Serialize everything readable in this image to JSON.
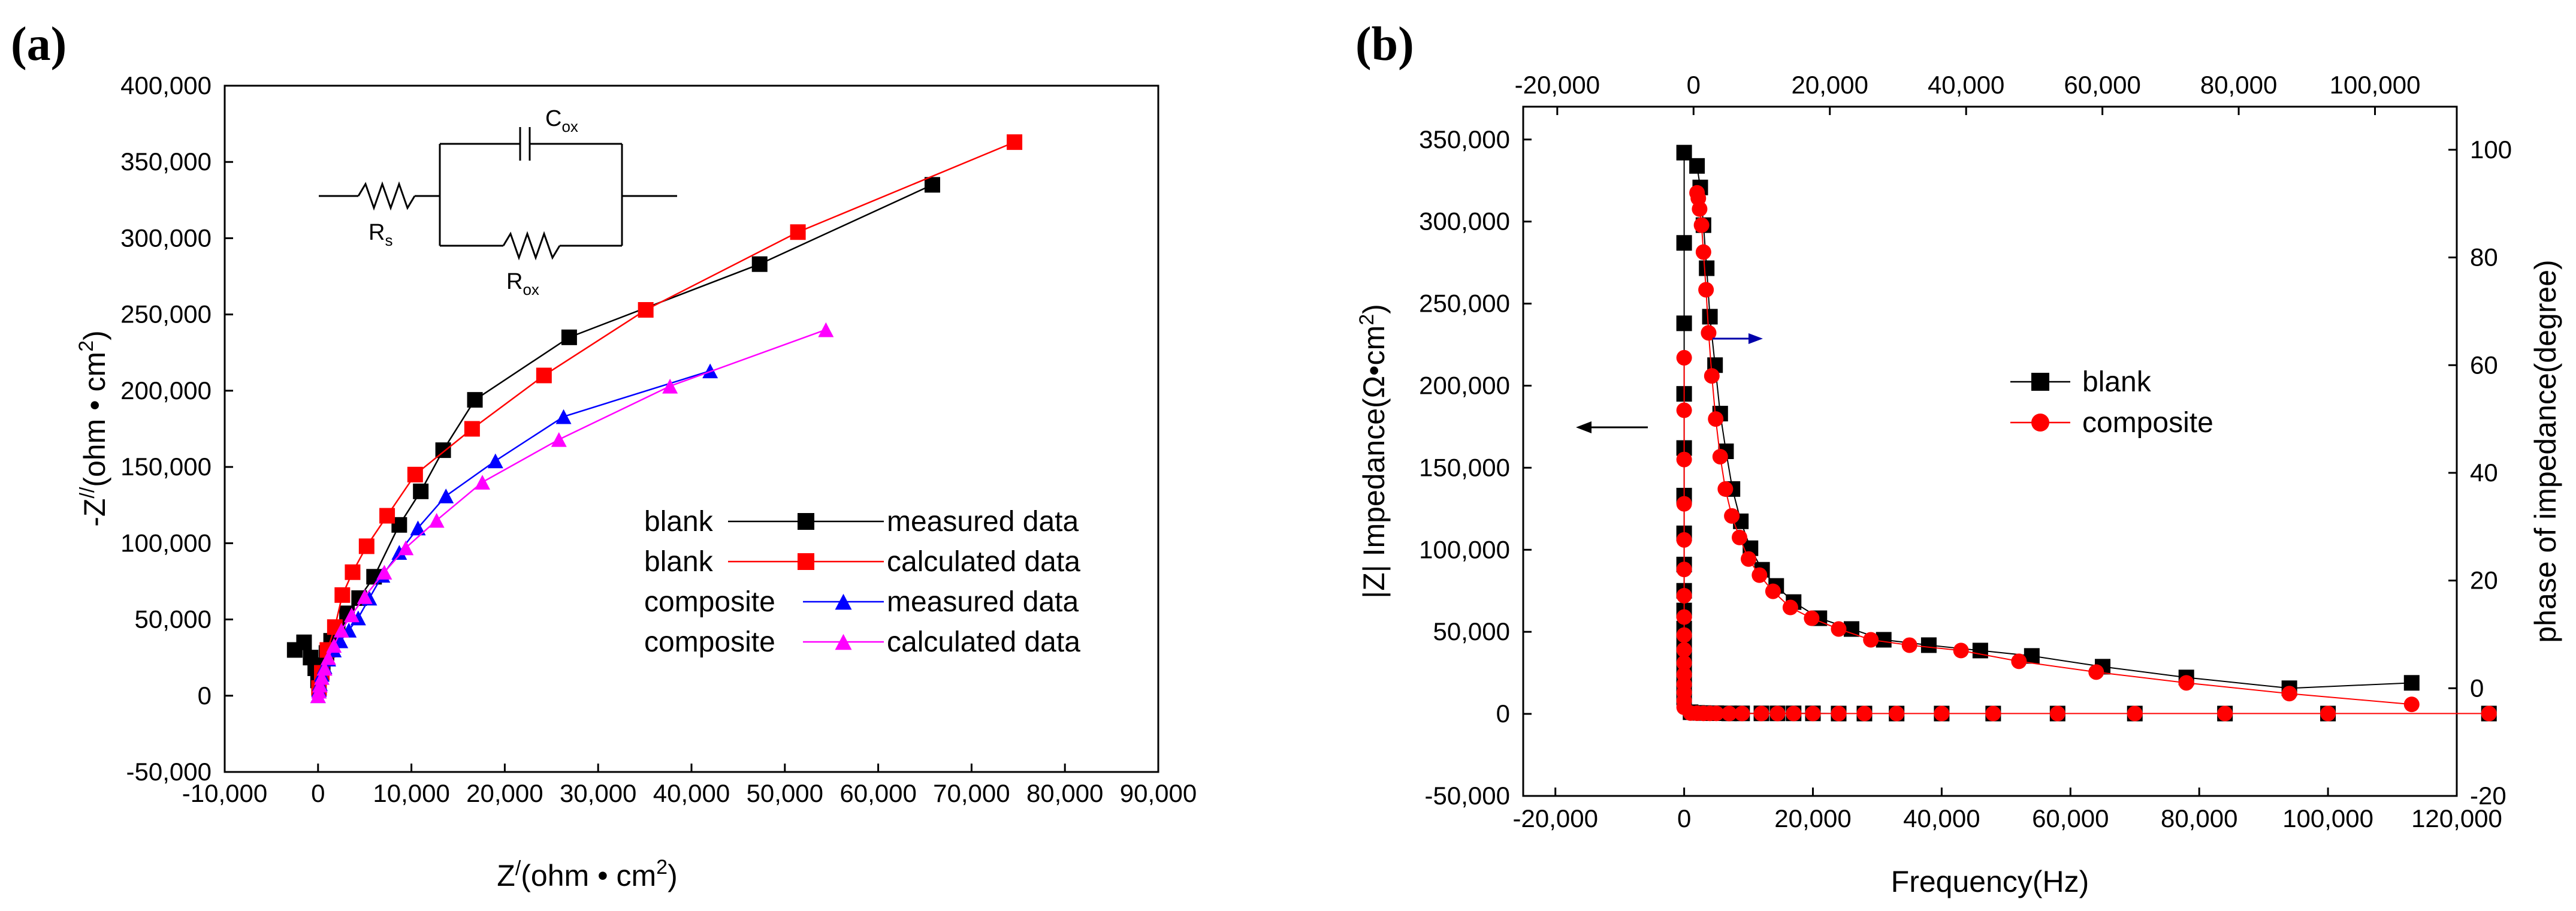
{
  "chart_data": [
    {
      "panel": "(a)",
      "type": "line",
      "xlabel": "Z/(ohm • cm2)",
      "xlabel_parts": {
        "main": "Z",
        "sup": "/",
        "unit": "(ohm • cm",
        "unit_sup": "2",
        "close": ")"
      },
      "ylabel": "-Z//(ohm • cm2)",
      "ylabel_parts": {
        "main": "-Z",
        "sup": "//",
        "unit": "(ohm • cm",
        "unit_sup": "2",
        "close": ")"
      },
      "xlim": [
        -10000,
        90000
      ],
      "ylim": [
        -50000,
        400000
      ],
      "x_ticks": [
        -10000,
        0,
        10000,
        20000,
        30000,
        40000,
        50000,
        60000,
        70000,
        80000,
        90000
      ],
      "x_tick_labels": [
        "-10,000",
        "0",
        "10,000",
        "20,000",
        "30,000",
        "40,000",
        "50,000",
        "60,000",
        "70,000",
        "80,000",
        "90,000"
      ],
      "y_ticks": [
        -50000,
        0,
        50000,
        100000,
        150000,
        200000,
        250000,
        300000,
        350000,
        400000
      ],
      "y_tick_labels": [
        "-50,000",
        "0",
        "50,000",
        "100,000",
        "150,000",
        "200,000",
        "250,000",
        "300,000",
        "350,000",
        "400,000"
      ],
      "circuit": {
        "rs": "R",
        "rs_sub": "s",
        "cox": "C",
        "cox_sub": "ox",
        "rox": "R",
        "rox_sub": "ox"
      },
      "series": [
        {
          "name": "blank measured data",
          "legend_left": "blank",
          "legend_right": "measured data",
          "color": "#000000",
          "marker": "square",
          "x": [
            -2500,
            -1500,
            -800,
            -300,
            0,
            200,
            500,
            900,
            1400,
            2100,
            3100,
            4400,
            6000,
            8700,
            11000,
            13400,
            16800,
            26900,
            47300,
            65800
          ],
          "y": [
            30000,
            35000,
            25000,
            18000,
            10000,
            14000,
            20000,
            28000,
            36000,
            44000,
            54000,
            64000,
            78000,
            112000,
            134000,
            161000,
            194000,
            235000,
            283000,
            335000
          ]
        },
        {
          "name": "blank calculated data",
          "legend_left": "blank",
          "legend_right": "calculated data",
          "color": "#ff0000",
          "marker": "square",
          "x": [
            100,
            400,
            1000,
            1800,
            2600,
            3700,
            5200,
            7400,
            10400,
            16500,
            24200,
            35100,
            51400,
            74600
          ],
          "y": [
            5000,
            15000,
            30000,
            45000,
            66000,
            81000,
            98000,
            118000,
            145000,
            175000,
            210000,
            253000,
            304000,
            363000
          ]
        },
        {
          "name": "composite measured data",
          "legend_left": "composite",
          "legend_right": "measured data",
          "color": "#0000ff",
          "marker": "triangle",
          "x": [
            0,
            100,
            200,
            400,
            700,
            1100,
            1700,
            2400,
            3300,
            4300,
            5500,
            6900,
            8700,
            10700,
            13700,
            19000,
            26300,
            42000
          ],
          "y": [
            0,
            4000,
            8000,
            14000,
            19000,
            24000,
            30000,
            36000,
            43000,
            51000,
            64000,
            79000,
            94000,
            110000,
            131000,
            154000,
            183000,
            213000
          ]
        },
        {
          "name": "composite calculated data",
          "legend_left": "composite",
          "legend_right": "calculated data",
          "color": "#ff00ff",
          "marker": "triangle",
          "x": [
            0,
            100,
            200,
            400,
            700,
            1100,
            1700,
            2500,
            3600,
            5000,
            7100,
            9400,
            12700,
            17600,
            25800,
            37700,
            54400
          ],
          "y": [
            0,
            3000,
            7000,
            12000,
            18000,
            25000,
            33000,
            43000,
            53000,
            65000,
            81000,
            97000,
            115000,
            140000,
            168000,
            203000,
            240000
          ]
        }
      ]
    },
    {
      "panel": "(b)",
      "type": "scatter",
      "xlabel": "Frequency(Hz)",
      "ylabel": "|Z| Impedance(Ω•cm2)",
      "ylabel_parts": {
        "main": "|Z| Impedance(Ω•cm",
        "sup": "2",
        "close": ")"
      },
      "y2label": "phase of impedance(degree)",
      "xlim": [
        -25000,
        120000
      ],
      "ylim": [
        -50000,
        370000
      ],
      "x_ticks": [
        -20000,
        0,
        20000,
        40000,
        60000,
        80000,
        100000,
        120000
      ],
      "x_tick_labels": [
        "-20,000",
        "0",
        "20,000",
        "40,000",
        "60,000",
        "80,000",
        "100,000",
        "120,000"
      ],
      "top_xlim": [
        -25000,
        112000
      ],
      "top_x_ticks": [
        -20000,
        0,
        20000,
        40000,
        60000,
        80000,
        100000
      ],
      "top_x_tick_labels": [
        "-20,000",
        "0",
        "20,000",
        "40,000",
        "60,000",
        "80,000",
        "100,000"
      ],
      "y_ticks": [
        -50000,
        0,
        50000,
        100000,
        150000,
        200000,
        250000,
        300000,
        350000
      ],
      "y_tick_labels": [
        "-50,000",
        "0",
        "50,000",
        "100,000",
        "150,000",
        "200,000",
        "250,000",
        "300,000",
        "350,000"
      ],
      "y2lim": [
        -20,
        108
      ],
      "y2_ticks": [
        -20,
        0,
        20,
        40,
        60,
        80,
        100
      ],
      "y2_tick_labels": [
        "-20",
        "0",
        "20",
        "40",
        "60",
        "80",
        "100"
      ],
      "series": [
        {
          "name": "blank",
          "color": "#000000",
          "marker": "square",
          "axis": "left",
          "x": [
            0,
            0,
            0,
            0,
            0,
            0,
            0,
            0,
            0,
            0,
            0,
            0,
            0,
            0,
            0,
            0,
            0,
            1000,
            2000,
            3000,
            4000,
            5000,
            7000,
            9000,
            12000,
            14500,
            17000,
            20000,
            24000,
            28000,
            33000,
            40000,
            48000,
            58000,
            70000,
            84000,
            100000,
            125000
          ],
          "y": [
            342000,
            287000,
            238000,
            195000,
            162000,
            133000,
            110000,
            91000,
            75000,
            63000,
            52000,
            43000,
            35000,
            28000,
            21000,
            16000,
            10000,
            1000,
            600,
            500,
            400,
            400,
            300,
            300,
            300,
            300,
            300,
            300,
            200,
            200,
            200,
            200,
            200,
            200,
            200,
            200,
            200,
            200
          ]
        },
        {
          "name": "composite",
          "color": "#ff0000",
          "marker": "circle",
          "axis": "left",
          "x": [
            0,
            0,
            0,
            0,
            0,
            0,
            0,
            0,
            0,
            0,
            0,
            0,
            0,
            0,
            0,
            0,
            1000,
            2000,
            3000,
            4000,
            5000,
            7000,
            9000,
            12000,
            14500,
            17000,
            20000,
            24000,
            28000,
            33000,
            40000,
            48000,
            58000,
            70000,
            84000,
            100000,
            125000
          ],
          "y": [
            217000,
            185000,
            155000,
            128000,
            106000,
            88000,
            72000,
            59000,
            48000,
            39000,
            31000,
            24000,
            18000,
            13000,
            8000,
            4000,
            500,
            400,
            300,
            300,
            300,
            200,
            200,
            200,
            200,
            200,
            200,
            200,
            200,
            200,
            200,
            200,
            200,
            200,
            200,
            200,
            200
          ]
        },
        {
          "name": "blank phase",
          "color": "#000000",
          "marker": "square",
          "axis": "right",
          "x": [
            2000,
            2500,
            3000,
            3500,
            4000,
            4800,
            5600,
            6500,
            7500,
            8800,
            10300,
            12100,
            14300,
            17000,
            21000,
            26000,
            31000,
            38000,
            46000,
            54000,
            65000,
            78000,
            94000,
            113000
          ],
          "y": [
            97,
            93,
            86,
            78,
            69,
            60,
            51,
            44,
            37,
            31,
            26,
            22,
            19,
            16,
            13,
            11,
            9,
            8,
            7,
            6,
            4,
            2,
            0,
            1
          ]
        },
        {
          "name": "composite phase",
          "color": "#ff0000",
          "marker": "circle",
          "axis": "right",
          "x": [
            2000,
            2200,
            2400,
            2700,
            3000,
            3400,
            3800,
            4300,
            4900,
            5600,
            6400,
            7400,
            8600,
            10000,
            11700,
            13800,
            16500,
            19800,
            24000,
            29000,
            35000,
            43000,
            52000,
            64000,
            78000,
            94000,
            113000
          ],
          "y": [
            92,
            91,
            89,
            86,
            81,
            74,
            66,
            58,
            50,
            43,
            37,
            32,
            28,
            24,
            21,
            18,
            15,
            13,
            11,
            9,
            8,
            7,
            5,
            3,
            1,
            -1,
            -3
          ]
        }
      ],
      "legend": [
        {
          "label": "blank",
          "color": "#000000",
          "marker": "square"
        },
        {
          "label": "composite",
          "color": "#ff0000",
          "marker": "circle"
        }
      ],
      "annotations": [
        {
          "type": "arrow",
          "direction": "left",
          "color": "#000000",
          "meaning": "left axis"
        },
        {
          "type": "arrow",
          "direction": "right",
          "color": "#0000aa",
          "meaning": "right axis"
        }
      ]
    }
  ]
}
